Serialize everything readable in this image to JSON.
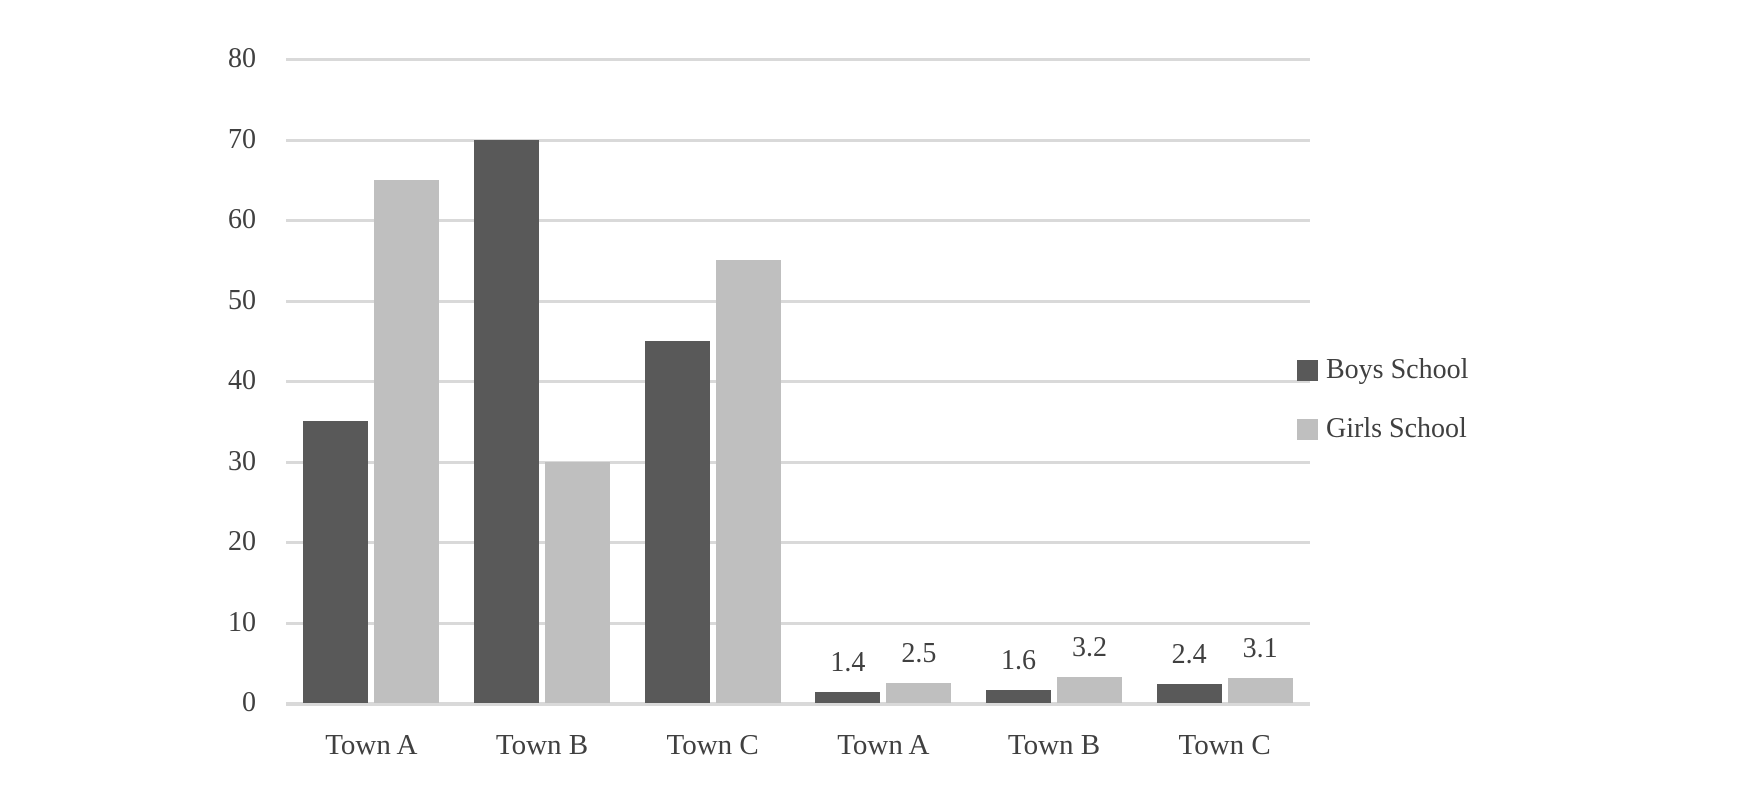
{
  "background_color": "#ffffff",
  "text_color": "#404040",
  "chart_data": {
    "type": "bar",
    "title": "",
    "xlabel": "",
    "ylabel": "",
    "categories": [
      "Town A",
      "Town B",
      "Town C",
      "Town A",
      "Town B",
      "Town C"
    ],
    "series": [
      {
        "name": "Boys School",
        "color": "#595959",
        "values": [
          35,
          70,
          45,
          1.4,
          1.6,
          2.4
        ]
      },
      {
        "name": "Girls School",
        "color": "#bfbfbf",
        "values": [
          65,
          30,
          55,
          2.5,
          3.2,
          3.1
        ]
      }
    ],
    "data_labels": [
      {
        "category_index": 3,
        "series_index": 0,
        "text": "1.4"
      },
      {
        "category_index": 3,
        "series_index": 1,
        "text": "2.5"
      },
      {
        "category_index": 4,
        "series_index": 0,
        "text": "1.6"
      },
      {
        "category_index": 4,
        "series_index": 1,
        "text": "3.2"
      },
      {
        "category_index": 5,
        "series_index": 0,
        "text": "2.4"
      },
      {
        "category_index": 5,
        "series_index": 1,
        "text": "3.1"
      }
    ],
    "y_axis": {
      "min": 0,
      "max": 80,
      "tick_interval": 10,
      "tick_labels": [
        "0",
        "10",
        "20",
        "30",
        "40",
        "50",
        "60",
        "70",
        "80"
      ]
    },
    "legend": {
      "position": "right",
      "entries": [
        "Boys School",
        "Girls School"
      ]
    },
    "grid": true,
    "gridline_color": "#d9d9d9"
  }
}
